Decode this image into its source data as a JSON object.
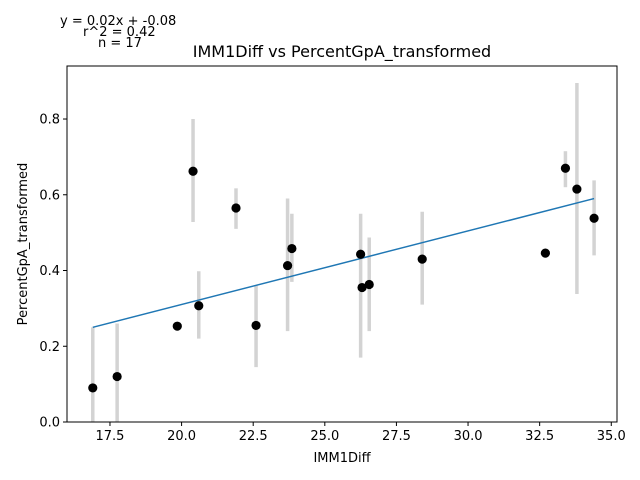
{
  "annotations": {
    "equation": "y = 0.02x + -0.08",
    "r2": "r^2 = 0.42",
    "n": "n = 17"
  },
  "chart_data": {
    "type": "scatter",
    "title": "IMM1Diff vs PercentGpA_transformed",
    "xlabel": "IMM1Diff",
    "ylabel": "PercentGpA_transformed",
    "xlim": [
      16.0,
      35.2
    ],
    "ylim": [
      0.0,
      0.94
    ],
    "xticks": [
      17.5,
      20.0,
      22.5,
      25.0,
      27.5,
      30.0,
      32.5,
      35.0
    ],
    "xtick_labels": [
      "17.5",
      "20.0",
      "22.5",
      "25.0",
      "27.5",
      "30.0",
      "32.5",
      "35.0"
    ],
    "yticks": [
      0.0,
      0.2,
      0.4,
      0.6,
      0.8
    ],
    "ytick_labels": [
      "0.0",
      "0.2",
      "0.4",
      "0.6",
      "0.8"
    ],
    "grid": false,
    "points": [
      {
        "x": 16.9,
        "y": 0.09,
        "err_low": 0.0,
        "err_high": 0.25
      },
      {
        "x": 17.75,
        "y": 0.12,
        "err_low": 0.0,
        "err_high": 0.26
      },
      {
        "x": 19.85,
        "y": 0.253,
        "err_low": null,
        "err_high": null
      },
      {
        "x": 20.4,
        "y": 0.662,
        "err_low": 0.528,
        "err_high": 0.8
      },
      {
        "x": 20.6,
        "y": 0.307,
        "err_low": 0.22,
        "err_high": 0.398
      },
      {
        "x": 21.9,
        "y": 0.565,
        "err_low": 0.51,
        "err_high": 0.617
      },
      {
        "x": 22.6,
        "y": 0.255,
        "err_low": 0.145,
        "err_high": 0.36
      },
      {
        "x": 23.7,
        "y": 0.413,
        "err_low": 0.24,
        "err_high": 0.59
      },
      {
        "x": 23.85,
        "y": 0.458,
        "err_low": 0.37,
        "err_high": 0.55
      },
      {
        "x": 26.25,
        "y": 0.443,
        "err_low": 0.17,
        "err_high": 0.55
      },
      {
        "x": 26.3,
        "y": 0.355,
        "err_low": null,
        "err_high": null
      },
      {
        "x": 26.55,
        "y": 0.363,
        "err_low": 0.24,
        "err_high": 0.487
      },
      {
        "x": 28.4,
        "y": 0.43,
        "err_low": 0.31,
        "err_high": 0.555
      },
      {
        "x": 32.7,
        "y": 0.446,
        "err_low": null,
        "err_high": null
      },
      {
        "x": 33.4,
        "y": 0.67,
        "err_low": 0.62,
        "err_high": 0.715
      },
      {
        "x": 33.8,
        "y": 0.615,
        "err_low": 0.338,
        "err_high": 0.895
      },
      {
        "x": 34.4,
        "y": 0.538,
        "err_low": 0.44,
        "err_high": 0.638
      }
    ],
    "regression": {
      "x1": 16.9,
      "y1": 0.25,
      "x2": 34.4,
      "y2": 0.59
    },
    "colors": {
      "points": "#000000",
      "errorbars": "#d3d3d3",
      "fit_line": "#1f77b4"
    }
  }
}
